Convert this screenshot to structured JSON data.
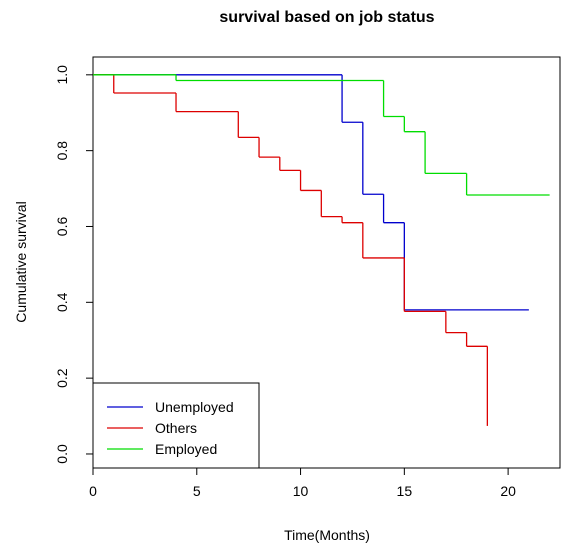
{
  "chart_data": {
    "type": "step",
    "title": "survival based on job status",
    "x_label": "Time(Months)",
    "y_label": "Cumulative survival",
    "xlim": [
      0,
      22.5
    ],
    "ylim": [
      -0.037,
      1.047
    ],
    "xticks": [
      0,
      5,
      10,
      15,
      20
    ],
    "yticks": [
      {
        "value": 0,
        "label": "0.0"
      },
      {
        "value": 0.2,
        "label": "0.2"
      },
      {
        "value": 0.4,
        "label": "0.4"
      },
      {
        "value": 0.6,
        "label": "0.6"
      },
      {
        "value": 0.8,
        "label": "0.8"
      },
      {
        "value": 1,
        "label": "1.0"
      }
    ],
    "legend": "bottom-left",
    "series": [
      {
        "name": "Unemployed",
        "color": "#0000cd",
        "x": [
          0,
          12,
          13,
          14,
          15,
          21
        ],
        "values": [
          1,
          0.875,
          0.685,
          0.61,
          0.38,
          0.38
        ]
      },
      {
        "name": "Others",
        "color": "#dd0000",
        "x": [
          0,
          1,
          4,
          7,
          8,
          9,
          10,
          11,
          12,
          13,
          15,
          17,
          18,
          19,
          19
        ],
        "values": [
          1,
          0.952,
          0.903,
          0.835,
          0.783,
          0.748,
          0.695,
          0.626,
          0.61,
          0.517,
          0.376,
          0.32,
          0.284,
          0.284,
          0.074
        ]
      },
      {
        "name": "Employed",
        "color": "#00dd00",
        "x": [
          0,
          4,
          14,
          15,
          16,
          18,
          22
        ],
        "values": [
          1,
          0.985,
          0.89,
          0.85,
          0.74,
          0.683,
          0.683
        ]
      }
    ]
  }
}
